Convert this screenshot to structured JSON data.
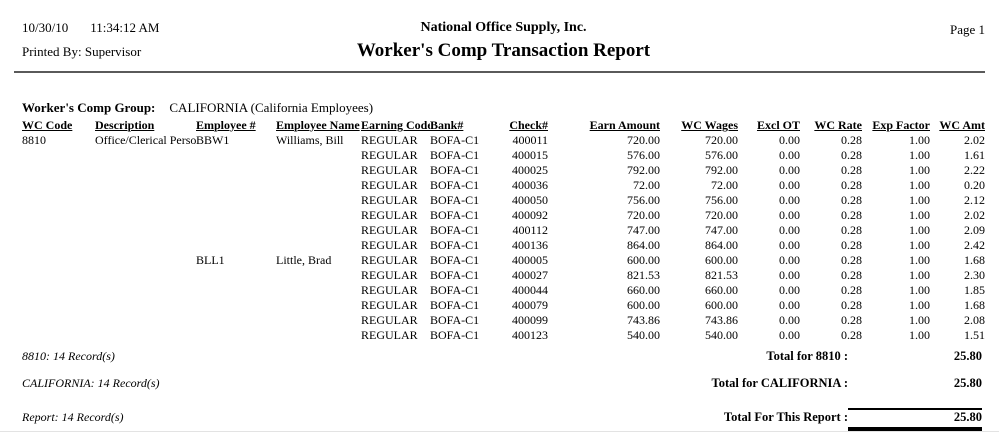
{
  "header": {
    "date": "10/30/10",
    "time": "11:34:12 AM",
    "printed_by_label": "Printed By:",
    "printed_by": "Supervisor",
    "company": "National Office Supply, Inc.",
    "title": "Worker's Comp Transaction Report",
    "page": "Page 1"
  },
  "group": {
    "label": "Worker's Comp Group:",
    "value": "CALIFORNIA (California Employees)"
  },
  "table": {
    "columns": [
      "WC Code",
      "Description",
      "Employee #",
      "Employee Name",
      "Earning Code",
      "Bank#",
      "Check#",
      "Earn Amount",
      "WC Wages",
      "Excl OT",
      "WC Rate",
      "Exp Factor",
      "WC Amt"
    ],
    "rows": [
      [
        "8810",
        "Office/Clerical Personn",
        "BBW1",
        "Williams, Bill",
        "REGULAR",
        "BOFA-C1",
        "400011",
        "720.00",
        "720.00",
        "0.00",
        "0.28",
        "1.00",
        "2.02"
      ],
      [
        "",
        "",
        "",
        "",
        "REGULAR",
        "BOFA-C1",
        "400015",
        "576.00",
        "576.00",
        "0.00",
        "0.28",
        "1.00",
        "1.61"
      ],
      [
        "",
        "",
        "",
        "",
        "REGULAR",
        "BOFA-C1",
        "400025",
        "792.00",
        "792.00",
        "0.00",
        "0.28",
        "1.00",
        "2.22"
      ],
      [
        "",
        "",
        "",
        "",
        "REGULAR",
        "BOFA-C1",
        "400036",
        "72.00",
        "72.00",
        "0.00",
        "0.28",
        "1.00",
        "0.20"
      ],
      [
        "",
        "",
        "",
        "",
        "REGULAR",
        "BOFA-C1",
        "400050",
        "756.00",
        "756.00",
        "0.00",
        "0.28",
        "1.00",
        "2.12"
      ],
      [
        "",
        "",
        "",
        "",
        "REGULAR",
        "BOFA-C1",
        "400092",
        "720.00",
        "720.00",
        "0.00",
        "0.28",
        "1.00",
        "2.02"
      ],
      [
        "",
        "",
        "",
        "",
        "REGULAR",
        "BOFA-C1",
        "400112",
        "747.00",
        "747.00",
        "0.00",
        "0.28",
        "1.00",
        "2.09"
      ],
      [
        "",
        "",
        "",
        "",
        "REGULAR",
        "BOFA-C1",
        "400136",
        "864.00",
        "864.00",
        "0.00",
        "0.28",
        "1.00",
        "2.42"
      ],
      [
        "",
        "",
        "BLL1",
        "Little, Brad",
        "REGULAR",
        "BOFA-C1",
        "400005",
        "600.00",
        "600.00",
        "0.00",
        "0.28",
        "1.00",
        "1.68"
      ],
      [
        "",
        "",
        "",
        "",
        "REGULAR",
        "BOFA-C1",
        "400027",
        "821.53",
        "821.53",
        "0.00",
        "0.28",
        "1.00",
        "2.30"
      ],
      [
        "",
        "",
        "",
        "",
        "REGULAR",
        "BOFA-C1",
        "400044",
        "660.00",
        "660.00",
        "0.00",
        "0.28",
        "1.00",
        "1.85"
      ],
      [
        "",
        "",
        "",
        "",
        "REGULAR",
        "BOFA-C1",
        "400079",
        "600.00",
        "600.00",
        "0.00",
        "0.28",
        "1.00",
        "1.68"
      ],
      [
        "",
        "",
        "",
        "",
        "REGULAR",
        "BOFA-C1",
        "400099",
        "743.86",
        "743.86",
        "0.00",
        "0.28",
        "1.00",
        "2.08"
      ],
      [
        "",
        "",
        "",
        "",
        "REGULAR",
        "BOFA-C1",
        "400123",
        "540.00",
        "540.00",
        "0.00",
        "0.28",
        "1.00",
        "1.51"
      ]
    ]
  },
  "totals": [
    {
      "record_label": "8810: 14 Record(s)",
      "total_label": "Total for 8810 :",
      "value": "25.80"
    },
    {
      "record_label": "CALIFORNIA: 14 Record(s)",
      "total_label": "Total for CALIFORNIA :",
      "value": "25.80"
    },
    {
      "record_label": "Report: 14 Record(s)",
      "total_label": "Total For This Report :",
      "value": "25.80"
    }
  ]
}
